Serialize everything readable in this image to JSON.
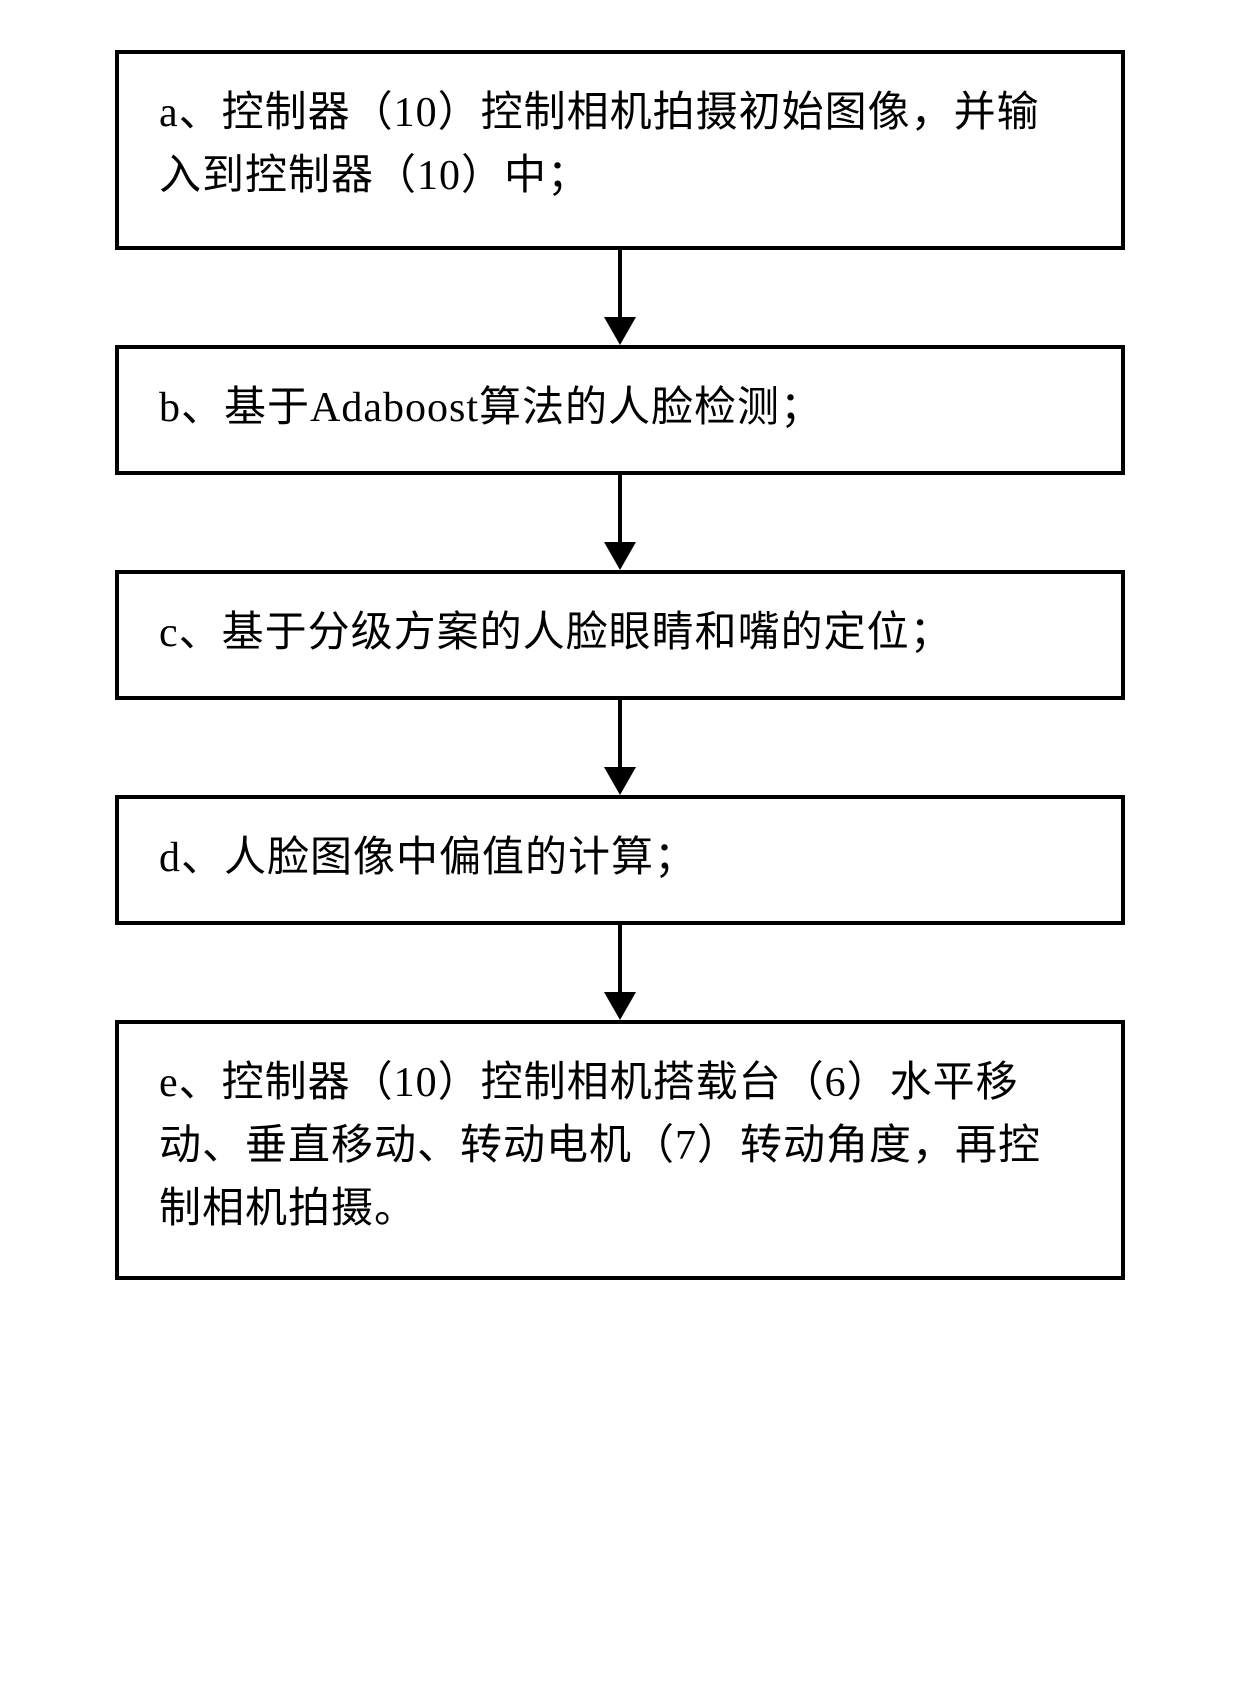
{
  "flowchart": {
    "type": "flowchart",
    "background_color": "#ffffff",
    "border_color": "#000000",
    "border_width": 4,
    "text_color": "#000000",
    "font_size": 42,
    "arrow_color": "#000000",
    "nodes": [
      {
        "id": "a",
        "label": "a、控制器（10）控制相机拍摄初始图像，并输入到控制器（10）中；"
      },
      {
        "id": "b",
        "label": "b、基于Adaboost算法的人脸检测；"
      },
      {
        "id": "c",
        "label": "c、基于分级方案的人脸眼睛和嘴的定位；"
      },
      {
        "id": "d",
        "label": "d、人脸图像中偏值的计算；"
      },
      {
        "id": "e",
        "label": "e、控制器（10）控制相机搭载台（6）水平移动、垂直移动、转动电机（7）转动角度，再控制相机拍摄。"
      }
    ],
    "edges": [
      {
        "from": "a",
        "to": "b"
      },
      {
        "from": "b",
        "to": "c"
      },
      {
        "from": "c",
        "to": "d"
      },
      {
        "from": "d",
        "to": "e"
      }
    ]
  }
}
